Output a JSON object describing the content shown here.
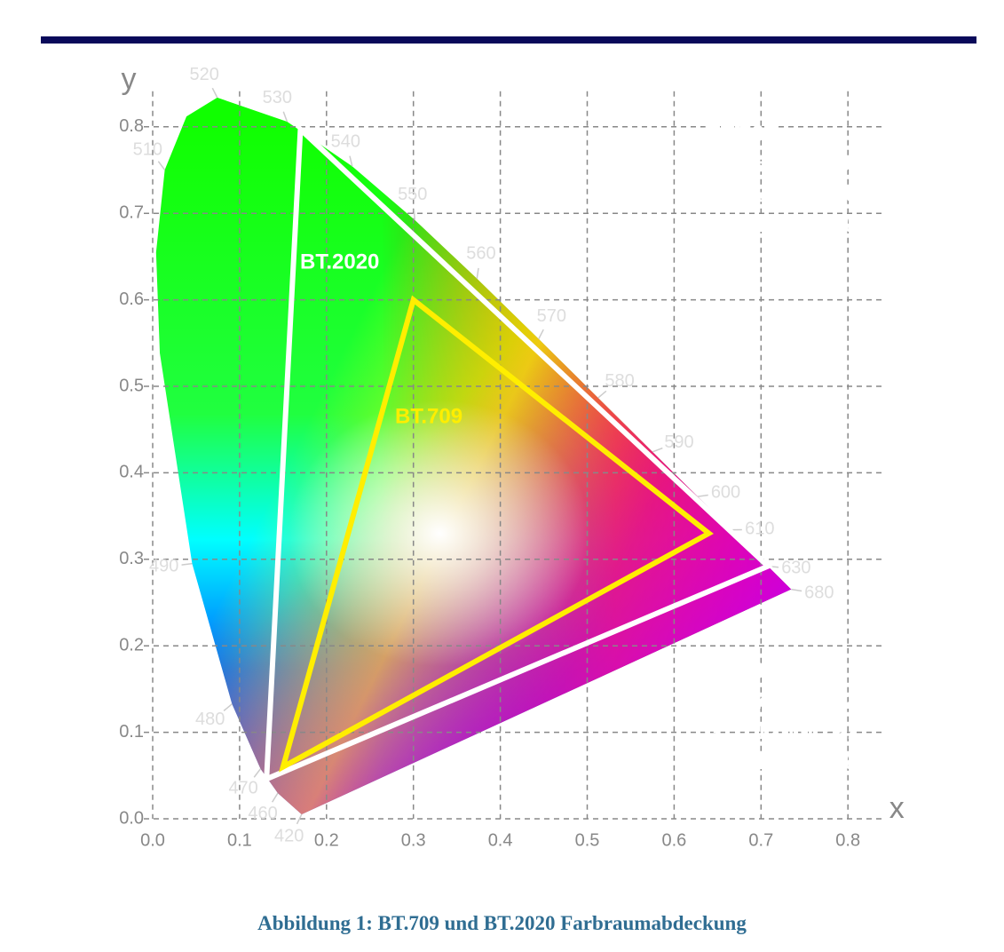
{
  "chart_data": {
    "type": "chromaticity",
    "xlabel": "x",
    "ylabel": "y",
    "xlim": [
      0,
      0.8
    ],
    "ylim": [
      0,
      0.8
    ],
    "xticks": [
      {
        "value": 0,
        "label": "0.0"
      },
      {
        "value": 0.1,
        "label": "0.1"
      },
      {
        "value": 0.2,
        "label": "0.2"
      },
      {
        "value": 0.3,
        "label": "0.3"
      },
      {
        "value": 0.4,
        "label": "0.4"
      },
      {
        "value": 0.5,
        "label": "0.5"
      },
      {
        "value": 0.6,
        "label": "0.6"
      },
      {
        "value": 0.7,
        "label": "0.7"
      },
      {
        "value": 0.8,
        "label": "0.8"
      }
    ],
    "yticks": [
      {
        "value": 0,
        "label": "0.0"
      },
      {
        "value": 0.1,
        "label": "0.1"
      },
      {
        "value": 0.2,
        "label": "0.2"
      },
      {
        "value": 0.3,
        "label": "0.3"
      },
      {
        "value": 0.4,
        "label": "0.4"
      },
      {
        "value": 0.5,
        "label": "0.5"
      },
      {
        "value": 0.6,
        "label": "0.6"
      },
      {
        "value": 0.7,
        "label": "0.7"
      },
      {
        "value": 0.8,
        "label": "0.8"
      }
    ],
    "grid": true,
    "spectral_locus": {
      "wavelengths": [
        420,
        460,
        470,
        480,
        490,
        null,
        null,
        510,
        null,
        520,
        530,
        540,
        550,
        560,
        570,
        580,
        590,
        600,
        610,
        630,
        680
      ],
      "x": [
        0.1714,
        0.144,
        0.1241,
        0.0913,
        0.0454,
        0.0082,
        0.0039,
        0.0139,
        0.0389,
        0.0743,
        0.1547,
        0.2296,
        0.3016,
        0.3731,
        0.4441,
        0.5125,
        0.5752,
        0.627,
        0.6658,
        0.7079,
        0.7347
      ],
      "y": [
        0.0051,
        0.0297,
        0.0578,
        0.1327,
        0.295,
        0.5384,
        0.6548,
        0.7502,
        0.812,
        0.8338,
        0.8059,
        0.7543,
        0.6923,
        0.6245,
        0.5547,
        0.4866,
        0.4242,
        0.3725,
        0.334,
        0.292,
        0.2653
      ]
    },
    "series": [
      {
        "name": "BT.2020",
        "color": "#ffffff",
        "x": [
          0.708,
          0.17,
          0.131
        ],
        "y": [
          0.292,
          0.797,
          0.046
        ]
      },
      {
        "name": "BT.709",
        "color": "#ffee00",
        "x": [
          0.64,
          0.3,
          0.15
        ],
        "y": [
          0.33,
          0.6,
          0.06
        ]
      }
    ],
    "annotations": [
      {
        "lines": [
          "BT.709",
          "R: 0,640/0330",
          "G: 0,300/0,600",
          "B: 0,150/0,060"
        ]
      },
      {
        "lines": [
          "BT.2020",
          "R: 0,708/0,292",
          "G: 0,170/0,797",
          "B: 0,131/0,046"
        ]
      }
    ]
  },
  "caption": "Abbildung 1: BT.709 und BT.2020 Farbraumabdeckung"
}
